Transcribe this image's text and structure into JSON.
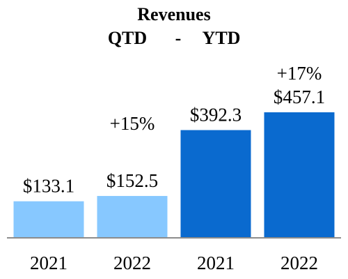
{
  "chart_data": {
    "type": "bar",
    "title": "Revenues",
    "subtitle": {
      "left": "QTD",
      "sep": "-",
      "right": "YTD"
    },
    "categories": [
      "2021",
      "2022",
      "2021",
      "2022"
    ],
    "values": [
      133.1,
      152.5,
      392.3,
      457.1
    ],
    "value_labels": [
      "$133.1",
      "$152.5",
      "$392.3",
      "$457.1"
    ],
    "annotations": [
      {
        "bar": 1,
        "text": "+15%"
      },
      {
        "bar": 3,
        "text": "+17%"
      }
    ],
    "colors": [
      "#87C8FF",
      "#87C8FF",
      "#0A6ACF",
      "#0A6ACF"
    ],
    "axis_color": "#8C8C8C",
    "ylim": [
      0,
      457.1
    ],
    "grid": false,
    "legend": "none"
  }
}
